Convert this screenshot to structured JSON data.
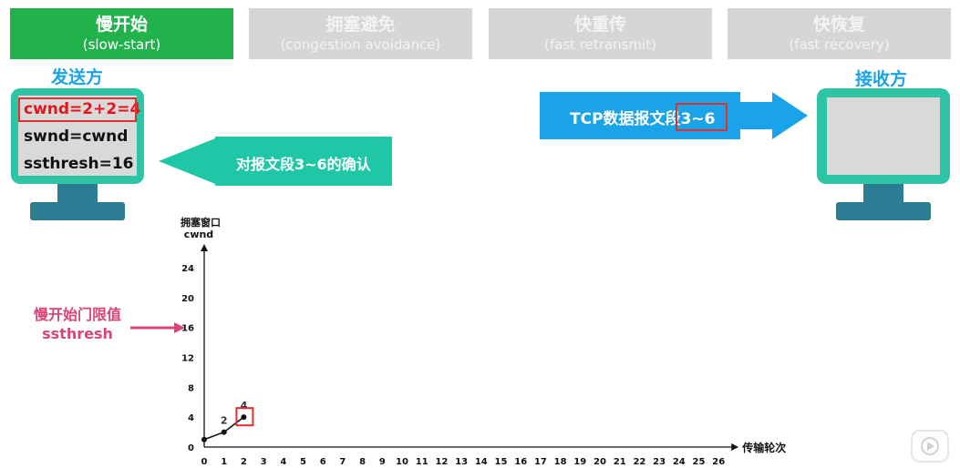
{
  "tabs": [
    {
      "title": "慢开始",
      "subtitle": "(slow-start)",
      "active": true
    },
    {
      "title": "拥塞避免",
      "subtitle": "(congestion avoidance)",
      "active": false
    },
    {
      "title": "快重传",
      "subtitle": "(fast retransmit)",
      "active": false
    },
    {
      "title": "快恢复",
      "subtitle": "(fast recovery)",
      "active": false
    }
  ],
  "sender": {
    "label": "发送方",
    "cwnd": "cwnd=2+2=4",
    "swnd": "swnd=cwnd",
    "ssthresh": "ssthresh=16"
  },
  "receiver": {
    "label": "接收方"
  },
  "segment_arrow": {
    "label": "TCP数据报文段3~6"
  },
  "ack_arrow": {
    "label": "对报文段3~6的确认"
  },
  "threshold_annotation": {
    "line1": "慢开始门限值",
    "line2": "ssthresh"
  },
  "colors": {
    "active_tab": "#22b24c",
    "inactive_tab": "#d6d6d6",
    "monitor": "#2ec4a6",
    "arrow_blue": "#1aa3e8",
    "arrow_teal": "#1fc7a6",
    "highlight_red": "#e03030",
    "threshold_pink": "#d8457a"
  },
  "chart_data": {
    "type": "line",
    "ylabel_line1": "拥塞窗口",
    "ylabel_line2": "cwnd",
    "xlabel": "传输轮次",
    "xlim": [
      0,
      26
    ],
    "ylim": [
      0,
      24
    ],
    "x_ticks": [
      0,
      1,
      2,
      3,
      4,
      5,
      6,
      7,
      8,
      9,
      10,
      11,
      12,
      13,
      14,
      15,
      16,
      17,
      18,
      19,
      20,
      21,
      22,
      23,
      24,
      25,
      26
    ],
    "y_ticks": [
      0,
      4,
      8,
      12,
      16,
      20,
      24
    ],
    "series": [
      {
        "x": [
          0,
          1,
          2
        ],
        "y": [
          1,
          2,
          4
        ],
        "point_labels": [
          "",
          "2",
          "4"
        ]
      }
    ],
    "highlight_point_index": 2,
    "threshold_y": 16
  }
}
